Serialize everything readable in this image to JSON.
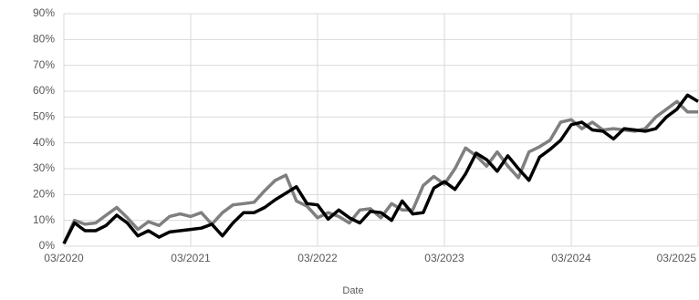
{
  "chart_data": {
    "type": "line",
    "x_label": "Date",
    "x": [
      "03/2020",
      "04/2020",
      "05/2020",
      "06/2020",
      "07/2020",
      "08/2020",
      "09/2020",
      "10/2020",
      "11/2020",
      "12/2020",
      "01/2021",
      "02/2021",
      "03/2021",
      "04/2021",
      "05/2021",
      "06/2021",
      "07/2021",
      "08/2021",
      "09/2021",
      "10/2021",
      "11/2021",
      "12/2021",
      "01/2022",
      "02/2022",
      "03/2022",
      "04/2022",
      "05/2022",
      "06/2022",
      "07/2022",
      "08/2022",
      "09/2022",
      "10/2022",
      "11/2022",
      "12/2022",
      "01/2023",
      "02/2023",
      "03/2023",
      "04/2023",
      "05/2023",
      "06/2023",
      "07/2023",
      "08/2023",
      "09/2023",
      "10/2023",
      "11/2023",
      "12/2023",
      "01/2024",
      "02/2024",
      "03/2024",
      "04/2024",
      "05/2024",
      "06/2024",
      "07/2024",
      "08/2024",
      "09/2024",
      "10/2024",
      "11/2024",
      "12/2024",
      "01/2025",
      "02/2025",
      "03/2025"
    ],
    "xlim": [
      "03/2020",
      "03/2025"
    ],
    "xticks": [
      "03/2020",
      "03/2021",
      "03/2022",
      "03/2023",
      "03/2024",
      "03/2025"
    ],
    "ylim": [
      0,
      90
    ],
    "yticks": [
      {
        "value": 0,
        "label": "0%"
      },
      {
        "value": 10,
        "label": "10%"
      },
      {
        "value": 20,
        "label": "20%"
      },
      {
        "value": 30,
        "label": "30%"
      },
      {
        "value": 40,
        "label": "40%"
      },
      {
        "value": 50,
        "label": "50%"
      },
      {
        "value": 60,
        "label": "60%"
      },
      {
        "value": 70,
        "label": "70%"
      },
      {
        "value": 80,
        "label": "80%"
      },
      {
        "value": 90,
        "label": "90%"
      }
    ],
    "grid": true,
    "series": [
      {
        "color": "#7f7f7f",
        "values": [
          1,
          10,
          8.5,
          9,
          12,
          15,
          11,
          6.5,
          9.5,
          8,
          11.5,
          12.5,
          11.5,
          13,
          8.5,
          13,
          16,
          16.5,
          17,
          21.5,
          25.5,
          27.5,
          17.5,
          15.5,
          11,
          13,
          11.5,
          9,
          14,
          14.5,
          11,
          16.5,
          14,
          14,
          23.5,
          27,
          24,
          30,
          38,
          35,
          31,
          36.5,
          31,
          26.5,
          36.5,
          38.5,
          41,
          48,
          49,
          45.5,
          48,
          45,
          45.5,
          45,
          44.5,
          45.5,
          50,
          53,
          56,
          52,
          52
        ]
      },
      {
        "color": "#000000",
        "values": [
          1,
          9,
          6,
          6,
          8,
          12,
          9,
          4,
          6,
          3.5,
          5.5,
          6,
          6.5,
          7,
          8.5,
          4,
          9,
          13,
          13,
          15,
          18,
          20.5,
          23,
          16.5,
          16,
          10.5,
          14,
          11,
          9,
          13.5,
          13,
          10,
          17.5,
          12.5,
          13,
          22.5,
          25,
          22,
          28,
          36,
          33.5,
          29,
          35,
          30,
          25.5,
          34.5,
          37.5,
          41,
          47,
          48,
          45,
          44.5,
          41.5,
          45.5,
          45,
          44.5,
          45.5,
          50,
          53,
          58.5,
          56
        ]
      }
    ]
  }
}
